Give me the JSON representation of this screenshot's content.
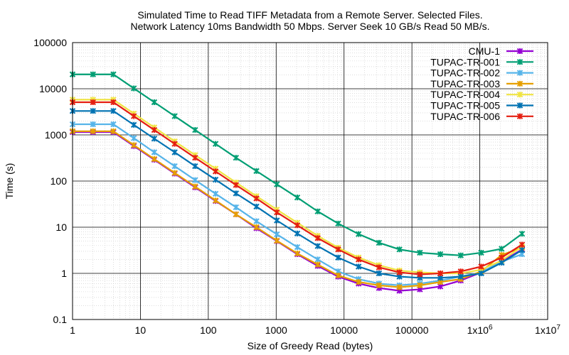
{
  "chart_data": {
    "type": "line",
    "title": "Simulated Time to Read TIFF Metadata from a Remote Server. Selected Files.",
    "subtitle": "Network Latency 10ms Bandwidth 50 Mbps. Server Seek 10 GB/s Read 50 MB/s.",
    "xlabel": "Size of Greedy Read (bytes)",
    "ylabel": "Time (s)",
    "x_scale": "log",
    "y_scale": "log",
    "xlim": [
      1,
      10000000
    ],
    "ylim": [
      0.1,
      100000
    ],
    "grid": true,
    "legend_position": "top-right",
    "x_tick_labels": [
      "1",
      "10",
      "100",
      "1000",
      "10000",
      "100000",
      "1x10^6",
      "1x10^7"
    ],
    "y_tick_labels": [
      "0.1",
      "1",
      "10",
      "100",
      "1000",
      "10000",
      "100000"
    ],
    "x": [
      1,
      2,
      4,
      8,
      16,
      32,
      64,
      128,
      256,
      512,
      1024,
      2048,
      4096,
      8192,
      16384,
      32768,
      65536,
      131072,
      262144,
      524288,
      1048576,
      2097152,
      4194304
    ],
    "series": [
      {
        "name": "CMU-1",
        "color": "#9400d3",
        "values": [
          1150,
          1150,
          1150,
          575,
          290,
          145,
          73,
          37,
          19,
          9.5,
          5,
          2.6,
          1.45,
          0.85,
          0.6,
          0.48,
          0.42,
          0.45,
          0.52,
          0.7,
          1.05,
          1.8,
          3.3
        ]
      },
      {
        "name": "TUPAC-TR-001",
        "color": "#009e73",
        "values": [
          20500,
          20500,
          20500,
          10200,
          5100,
          2550,
          1280,
          640,
          320,
          165,
          85,
          44,
          22,
          12,
          7.1,
          4.6,
          3.3,
          2.8,
          2.6,
          2.45,
          2.8,
          3.4,
          7.2
        ]
      },
      {
        "name": "TUPAC-TR-002",
        "color": "#56b4e9",
        "values": [
          1700,
          1700,
          1700,
          850,
          420,
          210,
          105,
          53,
          27,
          13.5,
          7,
          3.7,
          2.0,
          1.1,
          0.75,
          0.6,
          0.55,
          0.6,
          0.7,
          0.85,
          1.05,
          1.8,
          2.6
        ]
      },
      {
        "name": "TUPAC-TR-003",
        "color": "#e69f00",
        "values": [
          1200,
          1200,
          1200,
          600,
          300,
          150,
          76,
          38,
          19,
          10,
          5.1,
          2.7,
          1.55,
          0.9,
          0.65,
          0.55,
          0.5,
          0.55,
          0.65,
          0.75,
          1.1,
          2.5,
          3.6
        ]
      },
      {
        "name": "TUPAC-TR-004",
        "color": "#f0e442",
        "values": [
          5800,
          5800,
          5800,
          2900,
          1450,
          725,
          365,
          185,
          93,
          47,
          24,
          12.5,
          6.5,
          3.6,
          2.2,
          1.5,
          1.15,
          1.05,
          1.0,
          1.0,
          1.2,
          1.9,
          3.8
        ]
      },
      {
        "name": "TUPAC-TR-005",
        "color": "#0072b2",
        "values": [
          3300,
          3300,
          3300,
          1650,
          830,
          420,
          210,
          107,
          54,
          28,
          14,
          7.3,
          3.9,
          2.2,
          1.4,
          1.0,
          0.85,
          0.8,
          0.8,
          0.85,
          1.0,
          1.7,
          3.2
        ]
      },
      {
        "name": "TUPAC-TR-006",
        "color": "#e51e10",
        "values": [
          5100,
          5100,
          5100,
          2550,
          1280,
          640,
          320,
          162,
          82,
          42,
          21,
          11,
          5.8,
          3.3,
          2.0,
          1.35,
          1.05,
          0.95,
          1.0,
          1.1,
          1.4,
          2.2,
          4.2
        ]
      }
    ]
  }
}
